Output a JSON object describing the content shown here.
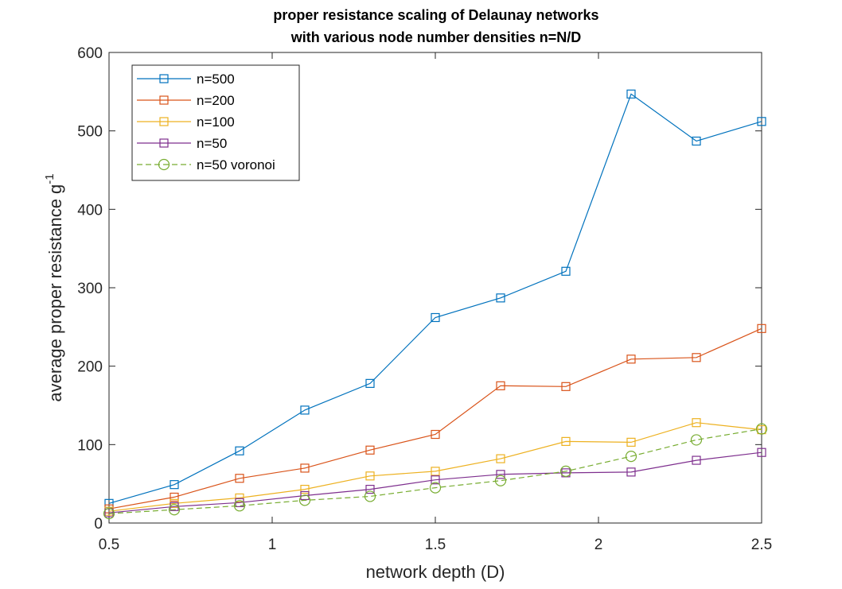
{
  "chart_data": {
    "type": "line",
    "title": [
      "proper resistance scaling of Delaunay networks",
      "with various node number densities n=N/D"
    ],
    "xlabel": "network depth (D)",
    "ylabel": "average proper resistance g",
    "ylabel_superscript": "-1",
    "xlim": [
      0.5,
      2.5
    ],
    "ylim": [
      0,
      600
    ],
    "xticks": [
      0.5,
      1,
      1.5,
      2,
      2.5
    ],
    "xtick_labels": [
      "0.5",
      "1",
      "1.5",
      "2",
      "2.5"
    ],
    "yticks": [
      0,
      100,
      200,
      300,
      400,
      500,
      600
    ],
    "ytick_labels": [
      "0",
      "100",
      "200",
      "300",
      "400",
      "500",
      "600"
    ],
    "grid": false,
    "legend_position": "top-left",
    "x": [
      0.5,
      0.7,
      0.9,
      1.1,
      1.3,
      1.5,
      1.7,
      1.9,
      2.1,
      2.3,
      2.5
    ],
    "series": [
      {
        "name": "n=500",
        "color": "#0072BD",
        "marker": "square",
        "dash": false,
        "values": [
          25,
          49,
          92,
          144,
          178,
          262,
          287,
          321,
          547,
          487,
          512
        ]
      },
      {
        "name": "n=200",
        "color": "#D95319",
        "marker": "square",
        "dash": false,
        "values": [
          18,
          33,
          57,
          70,
          93,
          113,
          175,
          174,
          209,
          211,
          248
        ]
      },
      {
        "name": "n=100",
        "color": "#EDB120",
        "marker": "square",
        "dash": false,
        "values": [
          15,
          25,
          32,
          43,
          60,
          66,
          82,
          104,
          103,
          128,
          119
        ]
      },
      {
        "name": "n=50",
        "color": "#7E2F8E",
        "marker": "square",
        "dash": false,
        "values": [
          13,
          21,
          26,
          35,
          43,
          55,
          62,
          64,
          65,
          80,
          90
        ]
      },
      {
        "name": "n=50 voronoi",
        "color": "#77AC30",
        "marker": "circle",
        "dash": true,
        "values": [
          12,
          17,
          22,
          29,
          34,
          45,
          54,
          66,
          85,
          106,
          120
        ]
      }
    ]
  }
}
